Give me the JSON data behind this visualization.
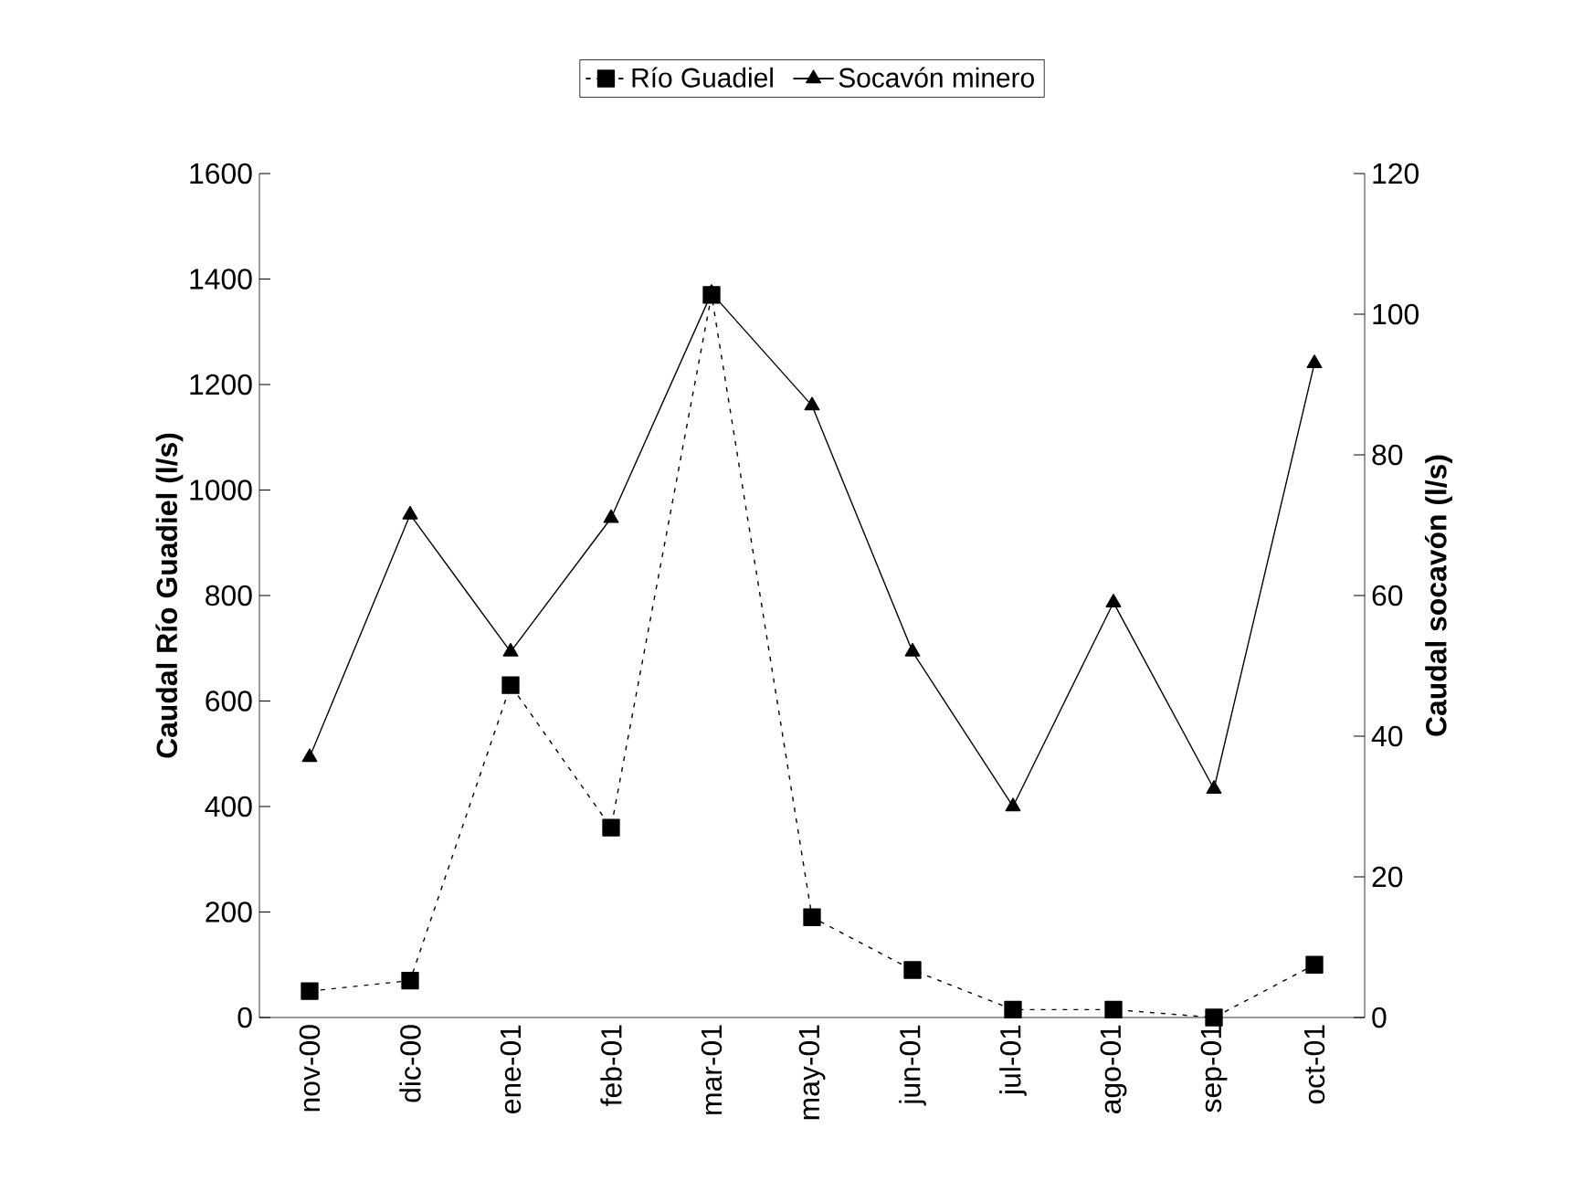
{
  "chart_data": {
    "type": "line",
    "categories": [
      "nov-00",
      "dic-00",
      "ene-01",
      "feb-01",
      "mar-01",
      "may-01",
      "jun-01",
      "jul-01",
      "ago-01",
      "sep-01",
      "oct-01"
    ],
    "series": [
      {
        "name": "Río Guadiel",
        "color": "#000000",
        "marker": "square",
        "line_style": "dotted",
        "values": [
          50,
          70,
          630,
          360,
          1370,
          190,
          90,
          15,
          15,
          0,
          100
        ]
      },
      {
        "name": "Socavón minero",
        "color": "#000000",
        "marker": "triangle",
        "line_style": "solid",
        "axis": "y2",
        "values": [
          37,
          71.5,
          52,
          71,
          103,
          87,
          52,
          30,
          59,
          32.5,
          93
        ]
      }
    ],
    "ylabel": "Caudal Río Guadiel (l/s)",
    "y2label": "Caudal socavón (l/s)",
    "ylim": [
      0,
      1600
    ],
    "yticks": [
      0,
      200,
      400,
      600,
      800,
      1000,
      1200,
      1400,
      1600
    ],
    "y2lim": [
      0,
      120
    ],
    "y2ticks": [
      0,
      20,
      40,
      60,
      80,
      100,
      120
    ],
    "legend": "top"
  }
}
